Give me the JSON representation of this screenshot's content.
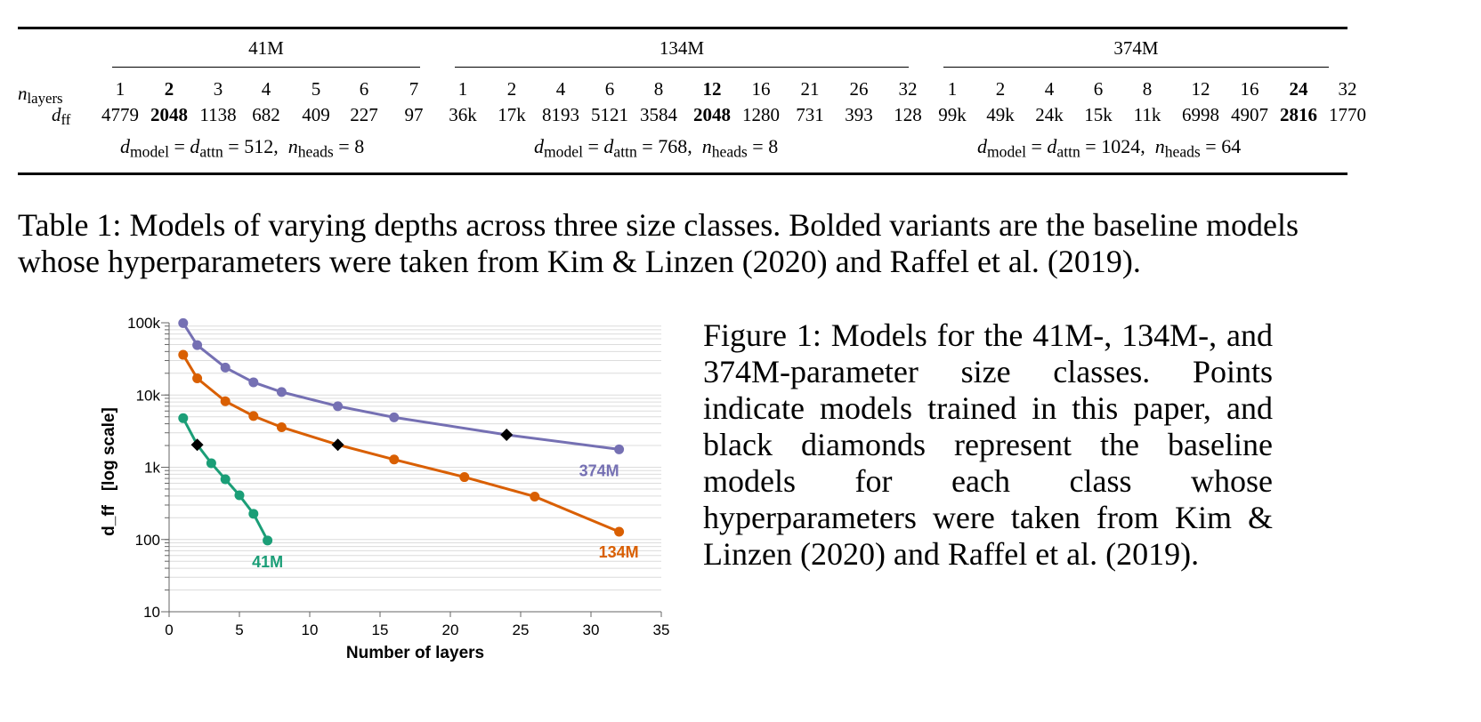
{
  "table": {
    "row_label_layers": "n",
    "row_label_layers_sub": "layers",
    "row_label_dff": "d",
    "row_label_dff_sub": "ff",
    "groups": [
      {
        "title": "41M",
        "layers": [
          "1",
          "2",
          "3",
          "4",
          "5",
          "6",
          "7"
        ],
        "dff": [
          "4779",
          "2048",
          "1138",
          "682",
          "409",
          "227",
          "97"
        ],
        "bold_index": 1,
        "dims": "= 512,",
        "heads": "= 8"
      },
      {
        "title": "134M",
        "layers": [
          "1",
          "2",
          "4",
          "6",
          "8",
          "12",
          "16",
          "21",
          "26",
          "32"
        ],
        "dff": [
          "36k",
          "17k",
          "8193",
          "5121",
          "3584",
          "2048",
          "1280",
          "731",
          "393",
          "128"
        ],
        "bold_index": 5,
        "dims": "= 768,",
        "heads": "= 8"
      },
      {
        "title": "374M",
        "layers": [
          "1",
          "2",
          "4",
          "6",
          "8",
          "12",
          "16",
          "24",
          "32"
        ],
        "dff": [
          "99k",
          "49k",
          "24k",
          "15k",
          "11k",
          "6998",
          "4907",
          "2816",
          "1770"
        ],
        "bold_index": 7,
        "dims": "= 1024,",
        "heads": "= 64"
      }
    ],
    "eq_dmodel": "d",
    "eq_dmodel_sub": "model",
    "eq_equals": " = ",
    "eq_dattn": "d",
    "eq_dattn_sub": "attn",
    "eq_nheads": "n",
    "eq_nheads_sub": "heads"
  },
  "table_caption": "Table 1: Models of varying depths across three size classes. Bolded variants are the baseline models whose hyperparameters were taken from Kim & Linzen (2020) and Raffel et al. (2019).",
  "figure_caption": "Figure 1: Models for the 41M-, 134M-, and 374M-parameter size classes. Points indicate models trained in this paper, and black diamonds represent the baseline models for each class whose hyperparameters were taken from Kim & Linzen (2020) and Raffel et al. (2019).",
  "chart_data": {
    "type": "line",
    "xlabel": "Number of layers",
    "ylabel": "d_ff   [log scale]",
    "xlim": [
      0,
      35
    ],
    "ylim": [
      10,
      100000
    ],
    "yscale": "log",
    "xticks": [
      "0",
      "5",
      "10",
      "15",
      "20",
      "25",
      "30",
      "35"
    ],
    "yticks": [
      "10",
      "100",
      "1k",
      "10k",
      "100k"
    ],
    "grid": true,
    "series": [
      {
        "name": "374M",
        "color": "#7570b3",
        "x": [
          1,
          2,
          4,
          6,
          8,
          12,
          16,
          24,
          32
        ],
        "y": [
          99000,
          49000,
          24000,
          15000,
          11000,
          6998,
          4907,
          2816,
          1770
        ],
        "baseline_x": 24
      },
      {
        "name": "134M",
        "color": "#d95f02",
        "x": [
          1,
          2,
          4,
          6,
          8,
          12,
          16,
          21,
          26,
          32
        ],
        "y": [
          36000,
          17000,
          8193,
          5121,
          3584,
          2048,
          1280,
          731,
          393,
          128
        ],
        "baseline_x": 12
      },
      {
        "name": "41M",
        "color": "#1b9e77",
        "x": [
          1,
          2,
          3,
          4,
          5,
          6,
          7
        ],
        "y": [
          4779,
          2048,
          1138,
          682,
          409,
          227,
          97
        ],
        "baseline_x": 2
      }
    ]
  }
}
